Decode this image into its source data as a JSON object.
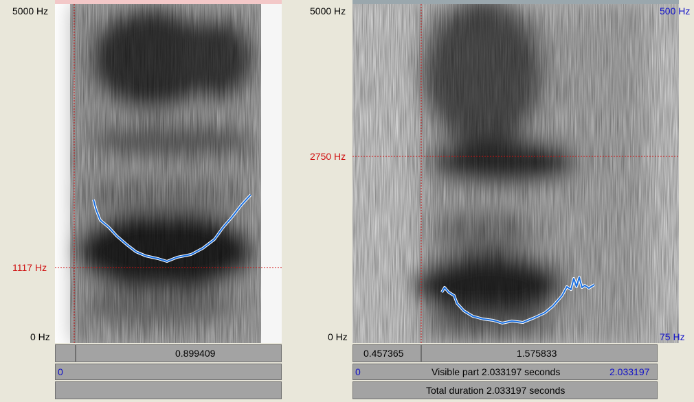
{
  "left_panel": {
    "freq_top": "5000 Hz",
    "freq_cursor": "1117 Hz",
    "freq_bottom": "0 Hz",
    "cursor_time": "0.899409",
    "visible_start": "0"
  },
  "right_panel": {
    "freq_top": "5000 Hz",
    "freq_cursor": "2750 Hz",
    "freq_bottom": "0 Hz",
    "pitch_top": "500 Hz",
    "pitch_bottom": "75 Hz",
    "segment_before": "0.457365",
    "segment_after": "1.575833",
    "visible_start": "0",
    "visible_part": "Visible part 2.033197 seconds",
    "visible_end": "2.033197",
    "total_duration": "Total duration 2.033197 seconds"
  },
  "colors": {
    "cursor": "#d01010",
    "pitch": "#1a6fe0",
    "axis_blue": "#1010c8"
  }
}
